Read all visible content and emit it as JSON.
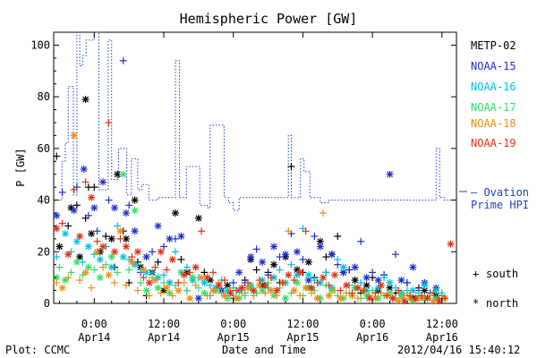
{
  "chart_data": {
    "type": "scatter",
    "title": "Hemispheric Power [GW]",
    "ylabel": "P [GW]",
    "xlabel": "Date and Time",
    "ylim": [
      0,
      105
    ],
    "xlim": [
      -7.0,
      62.5
    ],
    "yticks": [
      0,
      20,
      40,
      60,
      80,
      100
    ],
    "xticks": [
      {
        "x": 0,
        "top": "0:00",
        "bottom": "Apr14"
      },
      {
        "x": 12,
        "top": "12:00",
        "bottom": "Apr14"
      },
      {
        "x": 24,
        "top": "0:00",
        "bottom": "Apr15"
      },
      {
        "x": 36,
        "top": "12:00",
        "bottom": "Apr15"
      },
      {
        "x": 48,
        "top": "0:00",
        "bottom": "Apr16"
      },
      {
        "x": 60,
        "top": "12:00",
        "bottom": "Apr16"
      }
    ],
    "x_units": "hours from 2012/04/14 00:00",
    "grid": false,
    "legend_position": "right",
    "symbols": {
      "south": "+",
      "north": "*",
      "south_label": "south",
      "north_label": "north"
    },
    "hpi_label": [
      "— Ovation",
      "Prime HPI"
    ],
    "hpi": {
      "name": "Ovation Prime HPI",
      "color": "#1a3fcc",
      "x": [
        -7,
        -5.6,
        -5.6,
        -5,
        -5,
        -4.5,
        -4.5,
        -3.6,
        -3.6,
        -3.0,
        -3.0,
        -2.5,
        -2.5,
        -2.0,
        -2.0,
        -1.4,
        -1.4,
        0,
        0,
        0.8,
        0.8,
        2.4,
        2.4,
        3.0,
        3.0,
        4.2,
        4.2,
        5.6,
        5.6,
        6.4,
        6.4,
        7.5,
        7.5,
        8.2,
        8.2,
        9.4,
        9.4,
        11,
        11,
        14,
        14,
        14.7,
        14.7,
        15.9,
        15.9,
        18.2,
        18.2,
        19.5,
        19.5,
        20,
        20,
        22.4,
        22.4,
        23.2,
        23.2,
        24,
        24,
        25,
        25,
        33.5,
        33.5,
        34.0,
        34.0,
        35.6,
        35.6,
        36.2,
        36.2,
        37.2,
        37.2,
        38.2,
        38.2,
        39,
        39,
        40.5,
        40.5,
        59.0,
        59.0,
        59.6,
        59.6,
        60.4,
        60.4,
        62.5
      ],
      "y": [
        40,
        40,
        55,
        55,
        62,
        62,
        84,
        84,
        42,
        42,
        105,
        105,
        92,
        92,
        96,
        96,
        102,
        102,
        105,
        105,
        44,
        44,
        102,
        102,
        48,
        48,
        60,
        60,
        42,
        42,
        56,
        56,
        44,
        44,
        46,
        46,
        40,
        40,
        41,
        41,
        94,
        94,
        41,
        41,
        53,
        53,
        38,
        38,
        37,
        37,
        69,
        69,
        41,
        41,
        39,
        39,
        36,
        36,
        41,
        41,
        65,
        65,
        41,
        41,
        56,
        56,
        51,
        51,
        41,
        41,
        41,
        41,
        39,
        39,
        40,
        40,
        60,
        60,
        41,
        41,
        40,
        40
      ]
    },
    "series": [
      {
        "name": "METP-02",
        "color": "#000000",
        "x": [
          -6.5,
          -6,
          -4.5,
          -4,
          -3,
          -2.5,
          -1.5,
          -1.5,
          -1,
          -0.5,
          0,
          1,
          2,
          3,
          3.5,
          4,
          5,
          5.5,
          6,
          7,
          7.5,
          8,
          9,
          10,
          11,
          12,
          13,
          14,
          15,
          16,
          17,
          18,
          19,
          20,
          22,
          23,
          24,
          25,
          26,
          27,
          28,
          29,
          30,
          31,
          32,
          33,
          34,
          35,
          36,
          37,
          38,
          39,
          40,
          41,
          42,
          43,
          44,
          45,
          46,
          47,
          48,
          49,
          50,
          51,
          52,
          53,
          54,
          55,
          56,
          57,
          58,
          59,
          60
        ],
        "y": [
          57,
          22,
          30,
          37,
          38,
          18,
          33,
          79,
          45,
          27,
          45,
          20,
          26,
          25,
          14,
          50,
          28,
          25,
          8,
          40,
          16,
          14,
          3,
          12,
          16,
          5,
          8,
          35,
          17,
          12,
          10,
          33,
          12,
          9,
          5,
          7,
          2,
          5,
          9,
          17,
          13,
          7,
          12,
          15,
          8,
          18,
          53,
          13,
          12,
          16,
          10,
          24,
          18,
          19,
          26,
          12,
          13,
          9,
          4,
          7,
          10,
          5,
          11,
          6,
          4,
          3,
          8,
          2,
          6,
          5,
          4,
          3,
          2
        ]
      },
      {
        "name": "NOAA-15",
        "color": "#1e2fd0",
        "x": [
          -6.5,
          -5.5,
          -3.5,
          -3,
          -1.8,
          -1,
          0,
          0.5,
          1.5,
          2.5,
          3.5,
          5,
          5.5,
          6,
          7,
          8,
          9,
          10,
          11,
          12,
          13,
          14,
          15,
          16,
          18,
          20,
          22,
          24,
          25,
          26,
          27,
          28,
          29,
          30,
          31,
          32,
          33,
          34,
          35,
          36,
          37,
          38,
          39,
          40,
          41,
          42,
          43,
          44,
          45,
          46,
          47,
          48,
          49,
          50,
          51,
          52,
          53,
          54,
          55,
          56,
          57,
          58,
          59,
          60
        ],
        "y": [
          34,
          43,
          36,
          45,
          52,
          34,
          37,
          28,
          47,
          40,
          37,
          94,
          35,
          38,
          28,
          12,
          18,
          20,
          30,
          22,
          25,
          25,
          26,
          5,
          2,
          3,
          5,
          8,
          12,
          8,
          18,
          21,
          16,
          11,
          22,
          18,
          19,
          27,
          20,
          17,
          9,
          26,
          22,
          12,
          19,
          15,
          12,
          13,
          14,
          24,
          10,
          12,
          9,
          11,
          50,
          19,
          9,
          8,
          14,
          5,
          8,
          4,
          6,
          3
        ]
      },
      {
        "name": "NOAA-16",
        "color": "#00c0e0",
        "x": [
          -6.5,
          -5,
          -4,
          -3,
          -2,
          -1,
          0,
          1,
          2,
          3,
          4,
          5,
          6,
          7,
          8,
          9,
          10,
          11,
          12,
          13,
          14,
          15,
          16,
          17,
          18,
          19,
          20,
          21,
          22,
          23,
          24,
          25,
          26,
          27,
          28,
          29,
          30,
          31,
          32,
          33,
          34,
          35,
          36,
          37,
          38,
          39,
          40,
          41,
          42,
          43,
          44,
          45,
          46,
          47,
          48,
          49,
          50,
          51,
          52,
          53,
          54,
          55,
          56,
          57,
          58,
          59,
          60
        ],
        "y": [
          18,
          27,
          20,
          24,
          16,
          22,
          19,
          17,
          22,
          14,
          30,
          18,
          17,
          15,
          13,
          12,
          12,
          10,
          11,
          8,
          20,
          12,
          14,
          9,
          10,
          8,
          7,
          6,
          9,
          5,
          6,
          5,
          4,
          7,
          4,
          9,
          6,
          10,
          13,
          8,
          15,
          11,
          29,
          11,
          9,
          8,
          12,
          6,
          17,
          14,
          7,
          6,
          8,
          5,
          5,
          6,
          10,
          8,
          6,
          4,
          5,
          5,
          4,
          7,
          3,
          5,
          4
        ]
      },
      {
        "name": "NOAA-17",
        "color": "#2fdf6a",
        "x": [
          -6.5,
          -6,
          -5,
          -4,
          -3,
          -2,
          -1,
          0,
          1,
          2,
          3,
          4,
          5,
          6,
          7,
          8,
          9,
          10,
          11,
          12,
          13,
          14,
          15,
          16,
          17,
          18,
          19,
          20,
          21,
          22,
          23,
          24,
          25,
          26,
          27,
          28,
          29,
          30,
          31,
          32,
          33,
          34,
          35,
          36,
          37,
          38,
          39,
          40,
          41,
          42,
          43,
          44,
          45,
          46,
          47,
          48,
          49,
          50,
          51,
          52,
          53,
          54,
          55,
          56,
          57,
          58,
          59,
          60
        ],
        "y": [
          10,
          14,
          9,
          12,
          16,
          11,
          14,
          13,
          10,
          15,
          18,
          12,
          50,
          13,
          36,
          8,
          5,
          10,
          6,
          8,
          4,
          7,
          12,
          5,
          10,
          6,
          4,
          3,
          5,
          4,
          2,
          3,
          2,
          3,
          6,
          4,
          5,
          8,
          3,
          6,
          2,
          4,
          8,
          3,
          6,
          5,
          2,
          7,
          5,
          3,
          2,
          4,
          6,
          2,
          3,
          5,
          2,
          3,
          4,
          2,
          3,
          4,
          1,
          3,
          2,
          3,
          2,
          2
        ]
      },
      {
        "name": "NOAA-18",
        "color": "#f08c10",
        "x": [
          -6.5,
          -5.5,
          -4.5,
          -3.5,
          -2.5,
          -1.5,
          -0.5,
          0.5,
          1.5,
          2.5,
          3.5,
          4.5,
          5.5,
          6.5,
          7.5,
          8.5,
          9.5,
          10.5,
          11.5,
          12.5,
          13.5,
          14.5,
          15.5,
          16.5,
          17.5,
          18.5,
          19.5,
          20.5,
          21.5,
          22.5,
          23.5,
          24.5,
          25.5,
          26.5,
          27.5,
          28.5,
          29.5,
          30.5,
          31.5,
          32.5,
          33.5,
          34.5,
          35.5,
          36.5,
          37.5,
          38.5,
          39.5,
          40.5,
          41.5,
          42.5,
          43.5,
          44.5,
          45.5,
          46.5,
          47.5,
          48.5,
          49.5,
          50.5,
          51.5,
          52.5,
          53.5,
          54.5,
          55.5,
          56.5,
          57.5,
          58.5,
          59.5,
          60.5
        ],
        "y": [
          8,
          6,
          10,
          65,
          9,
          12,
          6,
          20,
          14,
          11,
          8,
          28,
          7,
          16,
          5,
          13,
          3,
          9,
          4,
          6,
          3,
          5,
          8,
          2,
          7,
          10,
          3,
          5,
          8,
          3,
          5,
          2,
          4,
          6,
          3,
          7,
          4,
          5,
          3,
          8,
          28,
          5,
          3,
          6,
          4,
          2,
          35,
          3,
          5,
          2,
          4,
          3,
          2,
          5,
          3,
          2,
          4,
          3,
          2,
          1,
          3,
          2,
          1,
          2,
          3,
          1,
          2,
          2
        ]
      },
      {
        "name": "NOAA-19",
        "color": "#e03010",
        "x": [
          -6.5,
          -5.5,
          -4.5,
          -3.5,
          -2.5,
          -1.5,
          -0.5,
          0.5,
          1.5,
          2.5,
          3.5,
          4.5,
          5.5,
          6.5,
          7.5,
          8.5,
          9.5,
          10.5,
          11.5,
          12.5,
          13.5,
          14.5,
          15.5,
          16.5,
          17.5,
          18.5,
          19.5,
          20.5,
          21.5,
          22.5,
          23.5,
          24.5,
          25.5,
          26.5,
          27.5,
          28.5,
          29.5,
          30.5,
          31.5,
          32.5,
          33.5,
          34.5,
          35.5,
          36.5,
          37.5,
          38.5,
          39.5,
          40.5,
          41.5,
          42.5,
          43.5,
          44.5,
          45.5,
          46.5,
          47.5,
          48.5,
          49.5,
          50.5,
          51.5,
          52.5,
          53.5,
          54.5,
          55.5,
          56.5,
          57.5,
          58.5,
          59.5,
          60.5,
          61.5
        ],
        "y": [
          29,
          31,
          19,
          44,
          26,
          47,
          41,
          24,
          22,
          70,
          20,
          25,
          22,
          18,
          20,
          10,
          8,
          14,
          20,
          13,
          17,
          8,
          11,
          12,
          14,
          28,
          10,
          12,
          7,
          9,
          4,
          5,
          6,
          8,
          5,
          9,
          7,
          10,
          5,
          8,
          11,
          9,
          12,
          28,
          6,
          8,
          10,
          7,
          11,
          5,
          7,
          4,
          6,
          5,
          2,
          4,
          7,
          3,
          2,
          5,
          1,
          3,
          2,
          3,
          2,
          4,
          1,
          2,
          23
        ]
      }
    ],
    "legend_labels": [
      "METP-02",
      "NOAA-15",
      "NOAA-16",
      "NOAA-17",
      "NOAA-18",
      "NOAA-19"
    ]
  },
  "footer": {
    "left": "Plot: CCMC",
    "right": "2012/04/16 15:40:12"
  }
}
